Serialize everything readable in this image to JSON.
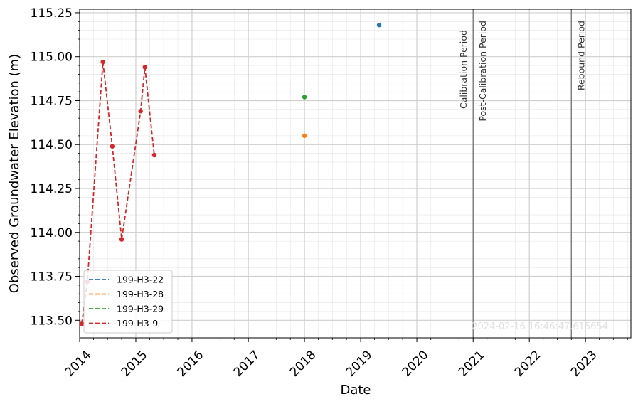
{
  "chart_data": {
    "type": "line",
    "xlabel": "Date",
    "ylabel": "Observed Groundwater Elevation (m)",
    "xlim": [
      "2014-01-01",
      "2023-10-23"
    ],
    "ylim": [
      113.4,
      115.27
    ],
    "x_ticks": [
      "2014",
      "2015",
      "2016",
      "2017",
      "2018",
      "2019",
      "2020",
      "2021",
      "2022",
      "2023"
    ],
    "y_ticks": [
      113.5,
      113.75,
      114.0,
      114.25,
      114.5,
      114.75,
      115.0,
      115.25
    ],
    "y_tick_labels": [
      "113.50",
      "113.75",
      "114.00",
      "114.25",
      "114.50",
      "114.75",
      "115.00",
      "115.25"
    ],
    "grid": true,
    "legend_position": "lower-left",
    "series": [
      {
        "name": "199-H3-22",
        "color": "#1f77b4",
        "style": "dashed",
        "points": [
          {
            "x": "2019-05-01",
            "y": 115.18
          }
        ]
      },
      {
        "name": "199-H3-28",
        "color": "#ff7f0e",
        "style": "dashed",
        "points": [
          {
            "x": "2018-01-01",
            "y": 114.55
          }
        ]
      },
      {
        "name": "199-H3-29",
        "color": "#2ca02c",
        "style": "dashed",
        "points": [
          {
            "x": "2018-01-01",
            "y": 114.77
          }
        ]
      },
      {
        "name": "199-H3-9",
        "color": "#d62728",
        "style": "dashed",
        "points": [
          {
            "x": "2014-01-15",
            "y": 113.48
          },
          {
            "x": "2014-02-20",
            "y": 113.72
          },
          {
            "x": "2014-06-01",
            "y": 114.97
          },
          {
            "x": "2014-08-01",
            "y": 114.49
          },
          {
            "x": "2014-10-01",
            "y": 113.96
          },
          {
            "x": "2015-02-01",
            "y": 114.69
          },
          {
            "x": "2015-03-01",
            "y": 114.94
          },
          {
            "x": "2015-05-01",
            "y": 114.44
          }
        ]
      }
    ],
    "vertical_lines": [
      {
        "x": "2021-01-01",
        "label_left": "Calibration Period",
        "label_right": "Post-Calibration Period"
      },
      {
        "x": "2022-10-01",
        "label_left": "",
        "label_right": "Rebound Period"
      }
    ],
    "annotation": "2024-02-16 16:46:47.615654"
  }
}
